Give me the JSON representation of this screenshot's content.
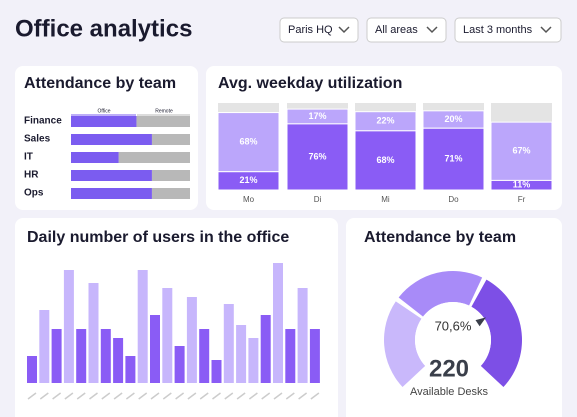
{
  "header": {
    "title": "Office analytics",
    "filters": [
      "Paris HQ",
      "All areas",
      "Last 3 months"
    ]
  },
  "team_attendance": {
    "title": "Attendance by team",
    "legend": [
      "Office",
      "Remote"
    ],
    "colors": [
      "#7b5cf0",
      "#b8b8b8"
    ],
    "teams": [
      "Finance",
      "Sales",
      "IT",
      "HR",
      "Ops"
    ],
    "office": [
      55,
      68,
      40,
      68,
      68
    ]
  },
  "utilization": {
    "title": "Avg. weekday utilization",
    "days": [
      "Mo",
      "Di",
      "Mi",
      "Do",
      "Fr"
    ],
    "bottom": [
      21,
      76,
      68,
      71,
      11
    ],
    "bottom_labels": [
      "21%",
      "76%",
      "68%",
      "71%",
      "11%"
    ],
    "top": [
      68,
      17,
      22,
      20,
      67
    ],
    "top_labels": [
      "68%",
      "17%",
      "22%",
      "20%",
      "67%"
    ],
    "colors": [
      "#8a5cf5",
      "#bba6fb",
      "#e4e4e4"
    ]
  },
  "daily_users": {
    "title": "Daily number of users in the office",
    "values": [
      27,
      73,
      54,
      113,
      54,
      100,
      54,
      45,
      27,
      113,
      68,
      95,
      37,
      86,
      54,
      23,
      79,
      58,
      45,
      68,
      120,
      54,
      95,
      54
    ],
    "highlight": [
      true,
      false,
      true,
      false,
      true,
      false,
      true,
      true,
      true,
      false,
      true,
      false,
      true,
      false,
      true,
      true,
      false,
      false,
      false,
      true,
      false,
      true,
      false,
      true
    ],
    "colors": [
      "#8a5cf5",
      "#c7b6fc"
    ]
  },
  "gauge": {
    "title": "Attendance by team",
    "value": 70.6,
    "value_label": "70,6%",
    "segments": [
      30,
      30,
      40
    ],
    "colors": [
      "#c9b8fb",
      "#a88bf8",
      "#7d4fe6"
    ],
    "desks": 220,
    "desks_label": "Available Desks"
  }
}
